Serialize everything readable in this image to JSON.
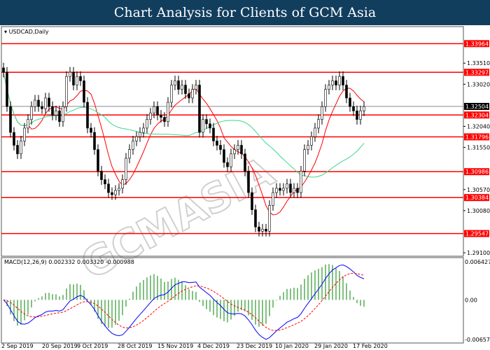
{
  "header": {
    "title": "Chart Analysis for Clients of GCM Asia"
  },
  "watermark": "GCMASIA",
  "chart_data": [
    {
      "type": "candlestick",
      "symbol_label": "USDCAD,Daily",
      "x_tick_labels": [
        "2 Sep 2019",
        "20 Sep 2019",
        "9 Oct 2019",
        "28 Oct 2019",
        "15 Nov 2019",
        "4 Dec 2019",
        "23 Dec 2019",
        "10 Jan 2020",
        "29 Jan 2020",
        "17 Feb 2020"
      ],
      "y_tick_labels": [
        "1.33510",
        "1.33020",
        "1.32040",
        "1.31550",
        "1.30570",
        "1.30080",
        "1.29100"
      ],
      "ylim": [
        1.2902,
        1.3436
      ],
      "current_price": "1.32504",
      "horizontal_levels": [
        "1.33964",
        "1.33297",
        "1.32304",
        "1.31796",
        "1.30986",
        "1.30384",
        "1.29547"
      ],
      "level_color": "#ff0000",
      "moving_average_colors": [
        "#ff0000",
        "#3cd88a"
      ],
      "closes": [
        1.333,
        1.325,
        1.319,
        1.316,
        1.314,
        1.317,
        1.32,
        1.322,
        1.325,
        1.3265,
        1.325,
        1.3245,
        1.327,
        1.325,
        1.323,
        1.324,
        1.3215,
        1.325,
        1.332,
        1.333,
        1.33,
        1.332,
        1.331,
        1.326,
        1.32,
        1.319,
        1.315,
        1.31,
        1.308,
        1.307,
        1.305,
        1.3045,
        1.3055,
        1.306,
        1.308,
        1.313,
        1.315,
        1.317,
        1.318,
        1.319,
        1.32,
        1.322,
        1.3235,
        1.325,
        1.323,
        1.3225,
        1.3215,
        1.326,
        1.33,
        1.331,
        1.329,
        1.33,
        1.328,
        1.327,
        1.329,
        1.33,
        1.319,
        1.322,
        1.321,
        1.32,
        1.317,
        1.316,
        1.315,
        1.312,
        1.311,
        1.314,
        1.315,
        1.316,
        1.314,
        1.31,
        1.305,
        1.301,
        1.297,
        1.296,
        1.2965,
        1.296,
        1.302,
        1.305,
        1.306,
        1.3055,
        1.306,
        1.307,
        1.305,
        1.306,
        1.305,
        1.31,
        1.315,
        1.316,
        1.318,
        1.32,
        1.322,
        1.325,
        1.329,
        1.33,
        1.331,
        1.33,
        1.332,
        1.33,
        1.327,
        1.325,
        1.324,
        1.322,
        1.324,
        1.325
      ]
    },
    {
      "type": "line",
      "label": "MACD(12,26,9) 0.002332 0.003320 -0.000988",
      "y_tick_labels": [
        "0.006427",
        "0.00",
        "-0.006579"
      ],
      "ylim": [
        -0.006579,
        0.006427
      ],
      "series_colors": {
        "macd": "#0000ff",
        "signal": "#ff0000",
        "histogram": "#008000"
      }
    }
  ]
}
